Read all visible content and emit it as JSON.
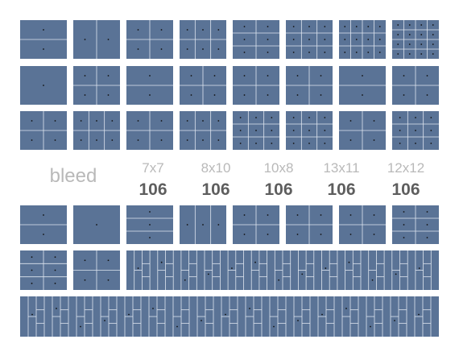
{
  "bleed_label": "bleed",
  "sizes": [
    {
      "label": "7x7",
      "count": 106
    },
    {
      "label": "8x10",
      "count": 106
    },
    {
      "label": "10x8",
      "count": 106
    },
    {
      "label": "13x11",
      "count": 106
    },
    {
      "label": "12x12",
      "count": 106
    }
  ]
}
